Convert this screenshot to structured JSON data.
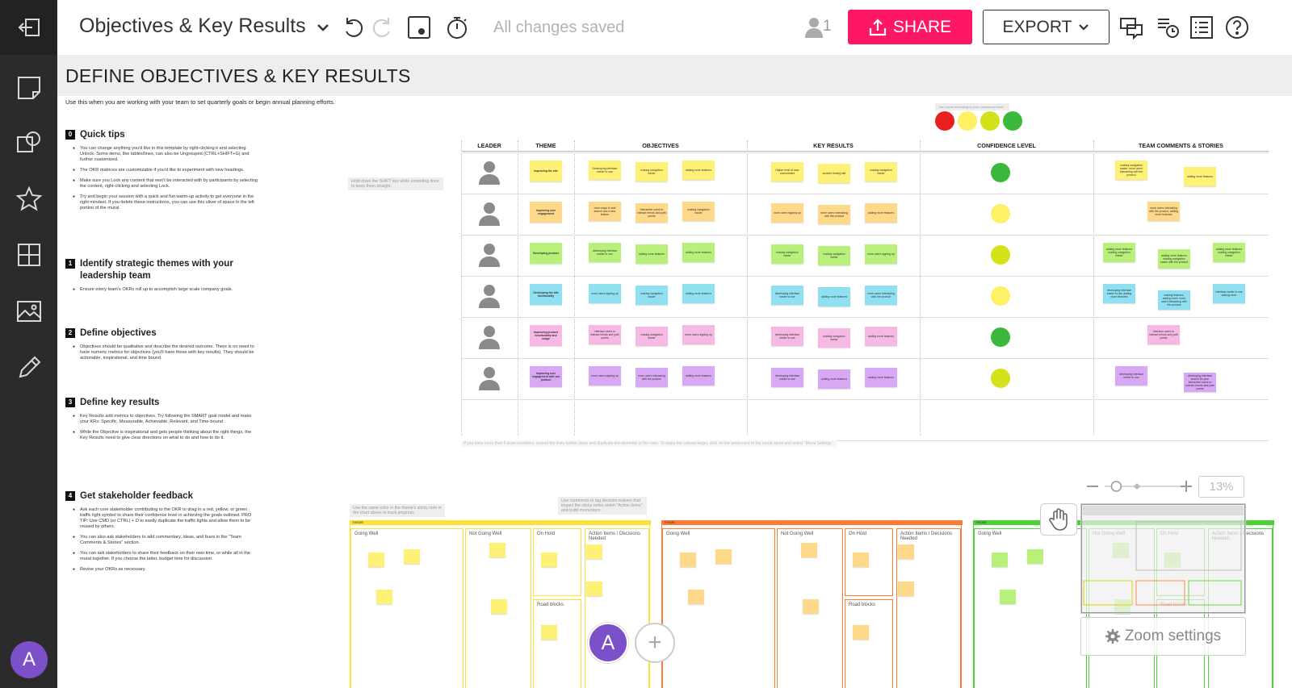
{
  "topbar": {
    "title": "Objectives & Key Results",
    "save_status": "All changes saved",
    "collaborators_count": "1",
    "share_label": "SHARE",
    "export_label": "EXPORT"
  },
  "sidebar": {
    "items": [
      "exit-icon",
      "sticky-note-icon",
      "shapes-icon",
      "star-icon",
      "grid-icon",
      "image-icon",
      "pencil-icon"
    ],
    "avatar_letter": "A"
  },
  "mural": {
    "title": "DEFINE OBJECTIVES & KEY RESULTS",
    "use_when": "Use this when you are working with your team to set quarterly goals or begin annual planning efforts.",
    "steps": [
      {
        "num": "0",
        "title": "Quick tips",
        "bullets": [
          "You can change anything you'd like in this template by right-clicking it and selecting Unlock. Some items, like tables/lines, can also be Ungrouped (CTRL+SHIFT+G) and further customized.",
          "The OKR matrices are customizable if you'd like to experiment with new headings.",
          "Make sure you Lock any content that won't be interacted with by participants by selecting the content, right-clicking and selecting Lock.",
          "Try and begin your session with a quick and fun warm-up activity to get everyone in the right mindset. If you delete these instructions, you can use this sliver of space in the left portion of the mural."
        ]
      },
      {
        "num": "1",
        "title": "Identify strategic themes with your leadership team",
        "bullets": [
          "Ensure every team's OKRs roll up to accomplish large scale company goals."
        ]
      },
      {
        "num": "2",
        "title": "Define objectives",
        "bullets": [
          "Objectives should be qualitative and describe the desired outcome. There is no need to have numeric metrics for objectives (you'll have those with key results). They should be actionable, inspirational, and time bound."
        ]
      },
      {
        "num": "3",
        "title": "Define key results",
        "bullets": [
          "Key Results add metrics to objectives. Try following the SMART goal model and make your KRs: Specific, Measurable, Achievable, Relevant, and Time-bound",
          "While the Objective is inspirational and gets people thinking about the right things, the Key Results need to give clear directions on what to do and how to do it."
        ]
      },
      {
        "num": "4",
        "title": "Get stakeholder feedback",
        "bullets": [
          "Ask each core stakeholder contributing to the OKR to drag in a red, yellow, or green traffic light symbol to share their confidence level in achieving the goals outlined. PRO TIP: Use CMD (or CTRL) + D to easily duplicate the traffic lights and allow them to be reused by others.",
          "You can also ask stakeholders to add commentary, ideas, and fears in the \"Team Comments & Stories\" section.",
          "You can ask stakeholders to share their feedback on their own time, or while all in the mural together. If you choose the latter, budget time for discussion.",
          "Revise your OKRs as necessary."
        ]
      }
    ],
    "shift_hint": "Hold down the SHIFT key while extending lines to keep them straight.",
    "traffic_hint": "Use colors according to your confidence level",
    "bottom_note": "If you have more than 6 team members, extend the lines further down and duplicate the elements in the rows. To make the canvas larger, click on the arrow next to the mural name and select \"Mural Settings.\"",
    "color_hint": "Use the same color in the theme's sticky note in the chart above to track progress.",
    "comments_hint": "Use comments to tag decision makers that impact the sticky notes under \"Action items\" and build momentum."
  },
  "okr_table": {
    "headers": [
      "LEADER",
      "THEME",
      "OBJECTIVES",
      "KEY RESULTS",
      "CONFIDENCE LEVEL",
      "TEAM COMMENTS & STORIES"
    ],
    "rows": [
      {
        "theme": "Improving the site",
        "color": "#fff176",
        "objectives": [
          "Developing interface easier to use",
          "making navigation easier",
          "adding more features"
        ],
        "key_results": [
          "Higher level of user commitment",
          "smarter finding site",
          "making navigation easier"
        ],
        "confidence": "#3cb93c",
        "comments": [
          "making navigation easier, more users interacting with the product",
          "adding more features"
        ]
      },
      {
        "theme": "Improving user engagement",
        "color": "#ffd98a",
        "objectives": [
          "more ways to add search and a new feature",
          "Interactive users to interact trends and path points",
          "making navigation easier"
        ],
        "key_results": [
          "more users signing up",
          "more users interacting with the product",
          "adding more features"
        ],
        "confidence": "#fff066",
        "comments": [
          "more users interacting with the product, adding more features"
        ]
      },
      {
        "theme": "Developing product",
        "color": "#b8f07a",
        "objectives": [
          "developing interface easier to use",
          "adding more features",
          "adding more features"
        ],
        "key_results": [
          "making navigation easier",
          "making navigation easier",
          "more users signing up"
        ],
        "confidence": "#d4e21a",
        "comments": [
          "adding more features making navigation easier",
          "adding more features making navigation easier with the product",
          "adding more features making navigation easier"
        ]
      },
      {
        "theme": "Developing the site functionality",
        "color": "#8fe1f2",
        "objectives": [
          "more users signing up",
          "making navigation easier",
          "adding more features"
        ],
        "key_results": [
          "developing interface easier to use",
          "adding more features",
          "more users interacting with the product"
        ],
        "confidence": "#fff066",
        "comments": [
          "developing interface easier to use adding more features",
          "making features, adding more, more users interacting with the product",
          "interface easier to use adding more"
        ]
      },
      {
        "theme": "Improving product functionality and usage",
        "color": "#f6b9e4",
        "objectives": [
          "Interface users to interact trends and path points",
          "making navigation easier",
          "more users signing up"
        ],
        "key_results": [
          "developing interface easier to use",
          "making navigation easier",
          "adding more features"
        ],
        "confidence": "#3cb93c",
        "comments": [
          "interface users to interact trends and path points"
        ]
      },
      {
        "theme": "Improving user engagement with our product",
        "color": "#d8a8f5",
        "objectives": [
          "more users signing up",
          "more users interacting with the product",
          "adding more features"
        ],
        "key_results": [
          "developing interface easier to use",
          "adding more features",
          "adding more features"
        ],
        "confidence": "#d4e21a",
        "comments": [
          "developing interface easier to use",
          "developing interface search for your interactive users to interact trends and path points"
        ]
      }
    ],
    "traffic_colors": [
      "#e82020",
      "#fff066",
      "#d4e21a",
      "#3cb93c"
    ]
  },
  "retro": {
    "boards": [
      {
        "theme": "THEME",
        "bar_color": "#ffe135",
        "columns": [
          "Going Well",
          "Not Going Well",
          "On Hold",
          "Action Items / Decisions Needed"
        ],
        "sub": "Road blocks"
      },
      {
        "theme": "THEME",
        "bar_color": "#ff7a33",
        "columns": [
          "Going Well",
          "Not Going Well",
          "On Hold",
          "Action Items / Decisions Needed"
        ],
        "sub": "Road blocks"
      },
      {
        "theme": "THEME",
        "bar_color": "#4cd137",
        "columns": [
          "Going Well",
          "Not Going Well",
          "On Hold",
          "Action Items / Decisions Needed"
        ],
        "sub": "Road blocks"
      }
    ]
  },
  "zoom": {
    "percent": "13%",
    "settings_label": "Zoom settings",
    "slider_level": 0.15
  },
  "presence": {
    "avatar_letter": "A"
  }
}
